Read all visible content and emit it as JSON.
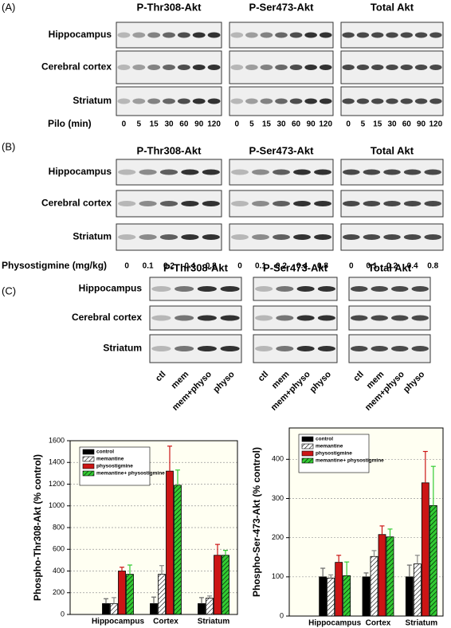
{
  "panels": [
    {
      "label": "(A)",
      "columns": [
        "P-Thr308-Akt",
        "P-Ser473-Akt",
        "Total Akt"
      ],
      "rows": [
        "Hippocampus",
        "Cerebral cortex",
        "Striatum"
      ],
      "lane_axis": "Pilo (min)",
      "lanes": [
        "0",
        "5",
        "15",
        "30",
        "60",
        "90",
        "120"
      ]
    },
    {
      "label": "(B)",
      "columns": [
        "P-Thr308-Akt",
        "P-Ser473-Akt",
        "Total Akt"
      ],
      "rows": [
        "Hippocampus",
        "Cerebral cortex",
        "Striatum"
      ],
      "lane_axis": "Physostigmine  (mg/kg)",
      "lanes": [
        "0",
        "0.1",
        "0.2",
        "0.4",
        "0.8"
      ]
    },
    {
      "label": "(C)",
      "columns": [
        "P-Thr308-Akt",
        "P-Ser473-Akt",
        "Total Akt"
      ],
      "rows": [
        "Hippocampus",
        "Cerebral cortex",
        "Striatum"
      ],
      "lanes": [
        "ctl",
        "mem",
        "mem+physo",
        "physo"
      ]
    }
  ],
  "chart_data": [
    {
      "type": "bar",
      "y_label": "Phospho-Thr308-Akt (% control)",
      "categories": [
        "Hippocampus",
        "Cortex",
        "Striatum"
      ],
      "series": [
        {
          "name": "control",
          "color": "#000000",
          "values": [
            100,
            100,
            100
          ],
          "errors": [
            45,
            60,
            55
          ]
        },
        {
          "name": "memantine",
          "color": "#ffffff",
          "hatch": true,
          "values": [
            100,
            370,
            150
          ],
          "errors": [
            55,
            80,
            20
          ]
        },
        {
          "name": "physostigmine",
          "color": "#cc1515",
          "values": [
            400,
            1320,
            545
          ],
          "errors": [
            35,
            230,
            100
          ]
        },
        {
          "name": "memantine+ physostigmine",
          "color": "#33cc33",
          "hatch": true,
          "values": [
            370,
            1190,
            545
          ],
          "errors": [
            85,
            140,
            45
          ]
        }
      ],
      "ylim": [
        0,
        1600
      ],
      "yticks": [
        0,
        200,
        400,
        600,
        800,
        1000,
        1200,
        1400,
        1600
      ],
      "grid": true
    },
    {
      "type": "bar",
      "y_label": "Phospho-Ser-473-Akt (% control)",
      "categories": [
        "Hippocampus",
        "Cortex",
        "Striatum"
      ],
      "series": [
        {
          "name": "control",
          "color": "#000000",
          "values": [
            100,
            100,
            100
          ],
          "errors": [
            22,
            10,
            30
          ]
        },
        {
          "name": "memantine",
          "color": "#ffffff",
          "hatch": true,
          "values": [
            97,
            152,
            133
          ],
          "errors": [
            8,
            15,
            22
          ]
        },
        {
          "name": "physostigmine",
          "color": "#cc1515",
          "values": [
            137,
            208,
            340
          ],
          "errors": [
            18,
            22,
            80
          ]
        },
        {
          "name": "memantine+ physostigmine",
          "color": "#33cc33",
          "hatch": true,
          "values": [
            103,
            202,
            282
          ],
          "errors": [
            35,
            20,
            100
          ]
        }
      ],
      "ylim": [
        0,
        480
      ],
      "yticks": [
        0,
        100,
        200,
        300,
        400
      ],
      "grid": true
    }
  ]
}
